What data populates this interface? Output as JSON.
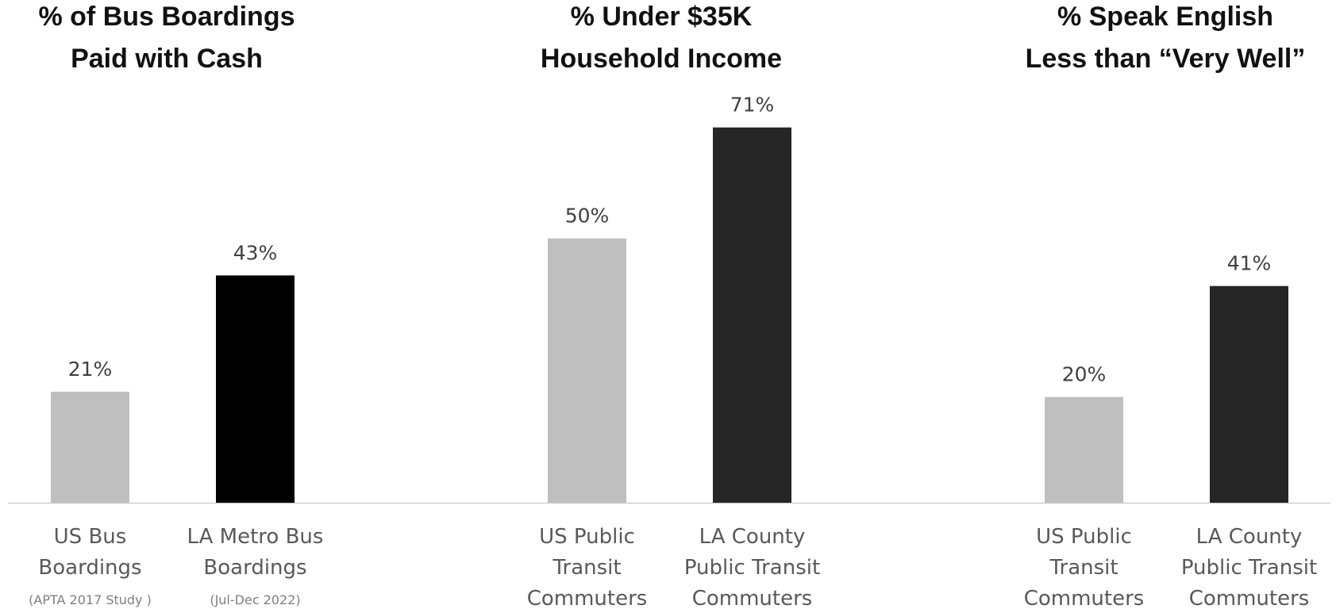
{
  "chart_data": [
    {
      "type": "bar",
      "title": [
        "% of Bus Boardings",
        "Paid with Cash"
      ],
      "categories": [
        {
          "lines": [
            "US Bus",
            "Boardings"
          ],
          "note": "(APTA 2017 Study )"
        },
        {
          "lines": [
            "LA Metro Bus",
            "Boardings"
          ],
          "note": "(Jul-Dec 2022)"
        }
      ],
      "values": [
        21,
        43
      ],
      "value_labels": [
        "21%",
        "43%"
      ],
      "colors": [
        "#bfbfbf",
        "#000000"
      ],
      "ylim": [
        0,
        80
      ]
    },
    {
      "type": "bar",
      "title": [
        "% Under $35K",
        "Household Income"
      ],
      "categories": [
        {
          "lines": [
            "US Public",
            "Transit",
            "Commuters"
          ],
          "note": ""
        },
        {
          "lines": [
            "LA County",
            "Public Transit",
            "Commuters"
          ],
          "note": ""
        }
      ],
      "values": [
        50,
        71
      ],
      "value_labels": [
        "50%",
        "71%"
      ],
      "colors": [
        "#bfbfbf",
        "#262626"
      ],
      "ylim": [
        0,
        80
      ]
    },
    {
      "type": "bar",
      "title": [
        "% Speak English",
        "Less than “Very Well”"
      ],
      "categories": [
        {
          "lines": [
            "US Public",
            "Transit",
            "Commuters"
          ],
          "note": ""
        },
        {
          "lines": [
            "LA County",
            "Public Transit",
            "Commuters"
          ],
          "note": ""
        }
      ],
      "values": [
        20,
        41
      ],
      "value_labels": [
        "20%",
        "41%"
      ],
      "colors": [
        "#bfbfbf",
        "#262626"
      ],
      "ylim": [
        0,
        80
      ]
    }
  ]
}
